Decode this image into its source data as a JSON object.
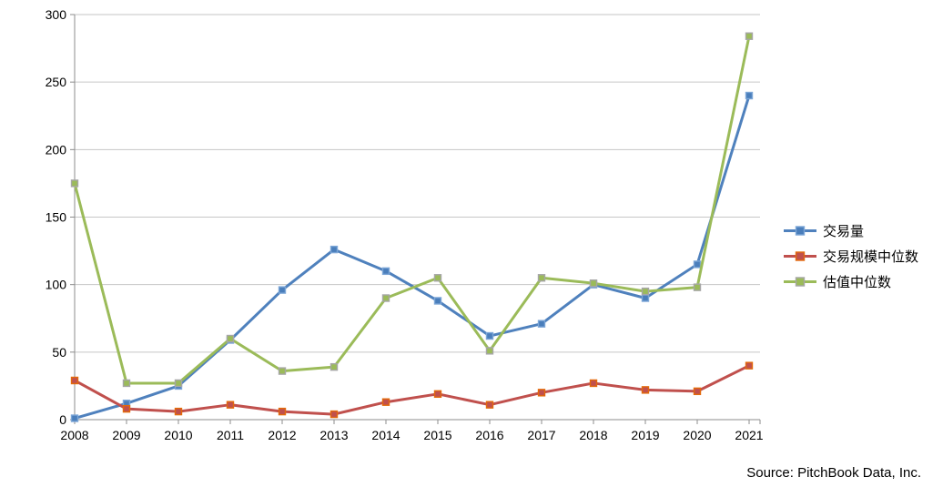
{
  "chart_data": {
    "type": "line",
    "title": "",
    "categories": [
      "2008",
      "2009",
      "2010",
      "2011",
      "2012",
      "2013",
      "2014",
      "2015",
      "2016",
      "2017",
      "2018",
      "2019",
      "2020",
      "2021"
    ],
    "series": [
      {
        "id": "deal-count",
        "name": "交易量",
        "color": "#4F81BD",
        "marker_fill": "#4A7EBB",
        "marker_border": "#7CA6D7",
        "values": [
          1,
          12,
          25,
          59,
          96,
          126,
          110,
          88,
          62,
          71,
          100,
          90,
          115,
          240
        ]
      },
      {
        "id": "median-deal-size",
        "name": "交易规模中位数",
        "color": "#C0504D",
        "marker_fill": "#C0504D",
        "marker_border": "#E3690B",
        "values": [
          29,
          8,
          6,
          11,
          6,
          4,
          13,
          19,
          11,
          20,
          27,
          22,
          21,
          40
        ]
      },
      {
        "id": "median-valuation",
        "name": "估值中位数",
        "color": "#9BBB59",
        "marker_fill": "#9BBB59",
        "marker_border": "#A6A6A6",
        "values": [
          175,
          27,
          27,
          60,
          36,
          39,
          90,
          105,
          51,
          105,
          101,
          95,
          98,
          284
        ]
      }
    ],
    "xlabel": "",
    "ylabel": "",
    "ylim": [
      0,
      300
    ],
    "ytick_step": 50,
    "yticks": [
      "0",
      "50",
      "100",
      "150",
      "200",
      "250",
      "300"
    ],
    "grid": true,
    "legend_position": "right",
    "gridline_color": "#C6C6C6",
    "axis_color": "#8C8C8C",
    "text_color": "#000000"
  },
  "source_note": "Source: PitchBook Data, Inc.",
  "background": "#FFFFFF"
}
